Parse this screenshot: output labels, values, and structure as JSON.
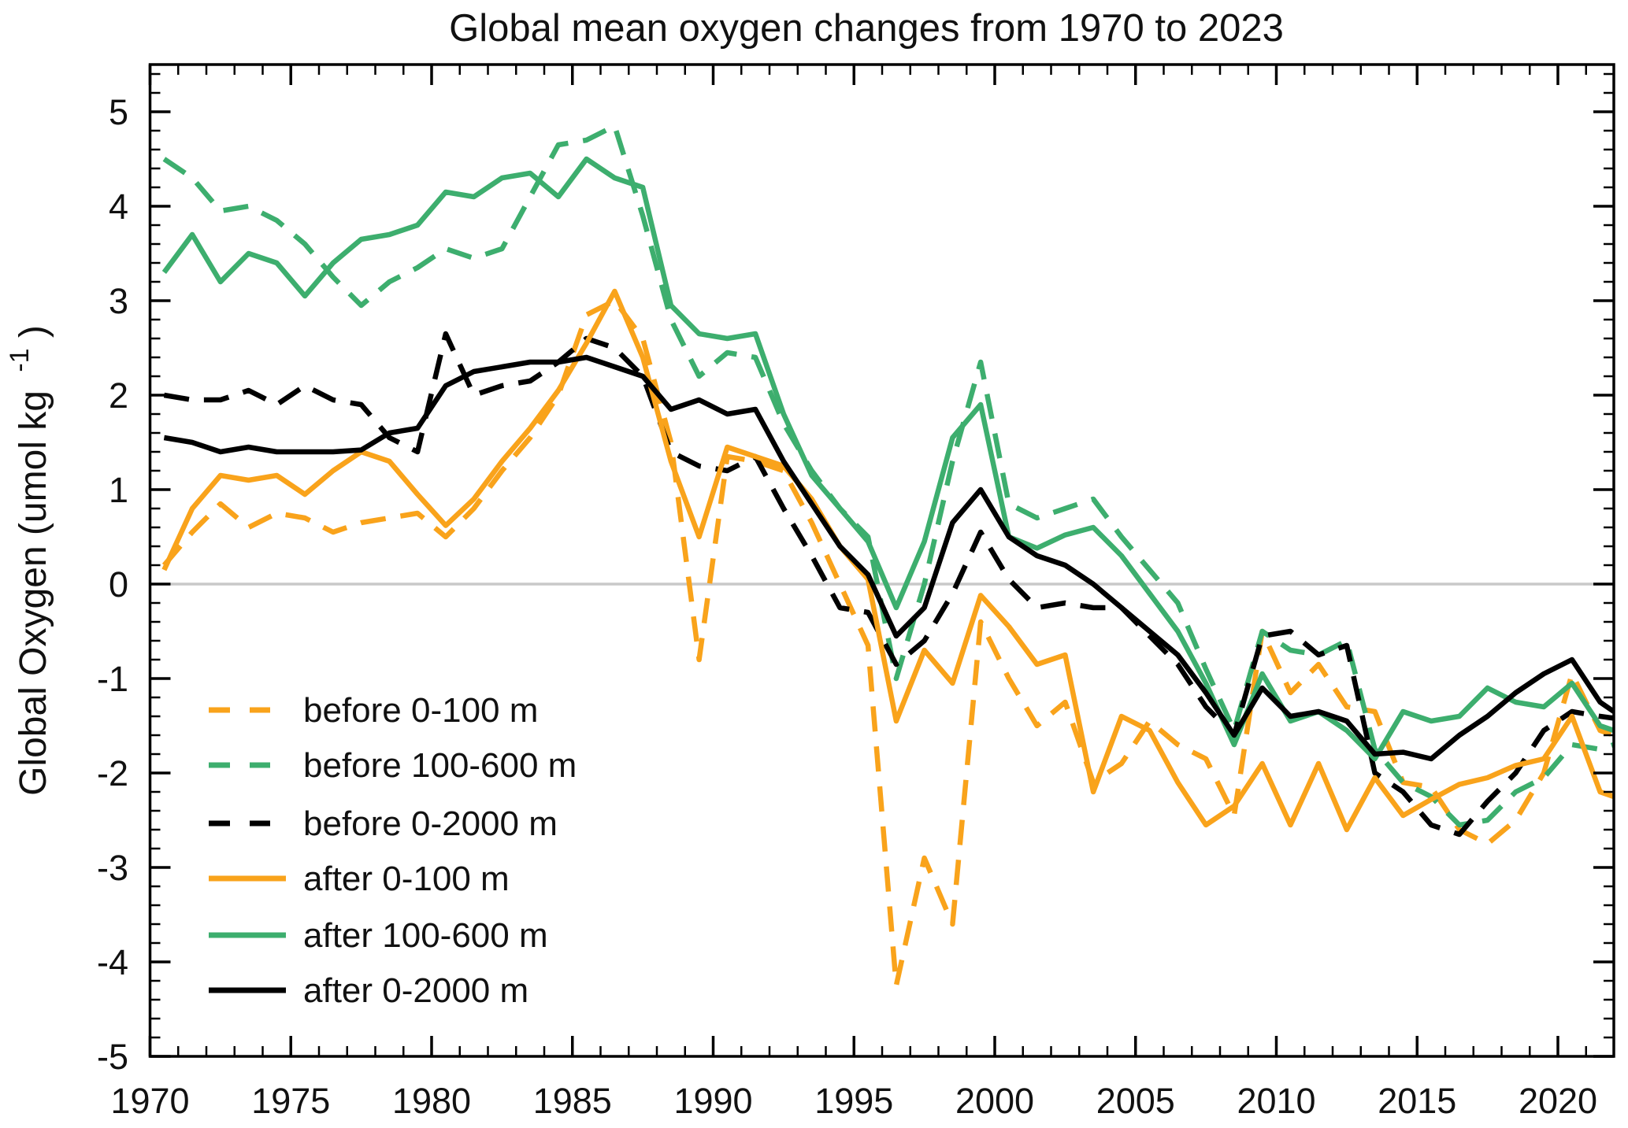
{
  "chart_data": {
    "type": "line",
    "title": "Global mean oxygen changes from 1970 to 2023",
    "xlabel": "",
    "ylabel": "Global Oxygen (umol kg⁻¹)",
    "ylabel_parts": {
      "main": "Global Oxygen (umol kg",
      "sup": "-1",
      "close": ")"
    },
    "xlim": [
      1970,
      2022
    ],
    "ylim": [
      -5,
      5.45
    ],
    "x_ticks": [
      1970,
      1975,
      1980,
      1985,
      1990,
      1995,
      2000,
      2005,
      2010,
      2015,
      2020
    ],
    "y_ticks": [
      5,
      4,
      3,
      2,
      1,
      0,
      -1,
      -2,
      -3,
      -4,
      -5
    ],
    "grid": "zero-line-only",
    "zero_line_color": "#c9c9c9",
    "legend_position": "lower-left",
    "colors": {
      "orange": "#F9A31B",
      "green": "#3DAE6E",
      "black": "#000000"
    },
    "years": [
      1970,
      1971,
      1972,
      1973,
      1974,
      1975,
      1976,
      1977,
      1978,
      1979,
      1980,
      1981,
      1982,
      1983,
      1984,
      1985,
      1986,
      1987,
      1988,
      1989,
      1990,
      1991,
      1992,
      1993,
      1994,
      1995,
      1996,
      1997,
      1998,
      1999,
      2000,
      2001,
      2002,
      2003,
      2004,
      2005,
      2006,
      2007,
      2008,
      2009,
      2010,
      2011,
      2012,
      2013,
      2014,
      2015,
      2016,
      2017,
      2018,
      2019,
      2020,
      2021,
      2022
    ],
    "series": [
      {
        "name": "before 0-100 m",
        "color": "#F9A31B",
        "dashed": true,
        "values": [
          0.2,
          0.55,
          0.85,
          0.6,
          0.75,
          0.7,
          0.55,
          0.65,
          0.7,
          0.75,
          0.5,
          0.8,
          1.2,
          1.55,
          2.0,
          2.85,
          3.0,
          2.6,
          1.5,
          -0.8,
          1.35,
          1.3,
          1.2,
          0.65,
          0.0,
          -0.65,
          -4.25,
          -2.9,
          -3.6,
          -0.4,
          -1.0,
          -1.5,
          -1.25,
          -2.1,
          -1.9,
          -1.45,
          -1.7,
          -1.85,
          -2.45,
          -0.5,
          -1.15,
          -0.85,
          -1.3,
          -1.35,
          -2.1,
          -2.15,
          -2.6,
          -2.75,
          -2.5,
          -2.0,
          -0.95,
          -1.55,
          -1.6
        ]
      },
      {
        "name": "before 100-600 m",
        "color": "#3DAE6E",
        "dashed": true,
        "values": [
          4.5,
          4.3,
          3.95,
          4.0,
          3.85,
          3.6,
          3.25,
          2.95,
          3.2,
          3.35,
          3.55,
          3.45,
          3.55,
          4.1,
          4.65,
          4.7,
          4.85,
          3.9,
          2.8,
          2.2,
          2.45,
          2.4,
          1.7,
          1.2,
          0.8,
          0.5,
          -1.0,
          0.0,
          1.3,
          2.35,
          0.85,
          0.7,
          0.8,
          0.9,
          0.5,
          0.15,
          -0.2,
          -0.9,
          -1.55,
          -0.5,
          -0.7,
          -0.75,
          -0.6,
          -1.75,
          -2.1,
          -2.25,
          -2.55,
          -2.5,
          -2.2,
          -2.05,
          -1.7,
          -1.75,
          -1.7
        ]
      },
      {
        "name": "before 0-2000 m",
        "color": "#000000",
        "dashed": true,
        "values": [
          2.0,
          1.95,
          1.95,
          2.05,
          1.9,
          2.1,
          1.95,
          1.9,
          1.55,
          1.4,
          2.65,
          2.0,
          2.1,
          2.15,
          2.35,
          2.6,
          2.5,
          2.2,
          1.4,
          1.25,
          1.2,
          1.35,
          0.8,
          0.3,
          -0.25,
          -0.3,
          -0.85,
          -0.6,
          -0.1,
          0.55,
          0.05,
          -0.25,
          -0.2,
          -0.25,
          -0.25,
          -0.55,
          -0.85,
          -1.3,
          -1.6,
          -0.55,
          -0.5,
          -0.75,
          -0.65,
          -2.0,
          -2.2,
          -2.55,
          -2.65,
          -2.3,
          -2.0,
          -1.55,
          -1.35,
          -1.4,
          -1.42
        ]
      },
      {
        "name": "after 0-100 m",
        "color": "#F9A31B",
        "dashed": false,
        "values": [
          0.15,
          0.8,
          1.15,
          1.1,
          1.15,
          0.95,
          1.2,
          1.4,
          1.3,
          0.95,
          0.62,
          0.9,
          1.3,
          1.65,
          2.05,
          2.55,
          3.1,
          2.4,
          1.3,
          0.5,
          1.45,
          1.35,
          1.25,
          0.9,
          0.4,
          0.05,
          -1.45,
          -0.7,
          -1.05,
          -0.12,
          -0.45,
          -0.85,
          -0.75,
          -2.2,
          -1.4,
          -1.55,
          -2.1,
          -2.55,
          -2.35,
          -1.9,
          -2.55,
          -1.9,
          -2.6,
          -2.05,
          -2.45,
          -2.28,
          -2.12,
          -2.05,
          -1.92,
          -1.85,
          -1.4,
          -2.2,
          -2.25
        ]
      },
      {
        "name": "after 100-600 m",
        "color": "#3DAE6E",
        "dashed": false,
        "values": [
          3.3,
          3.7,
          3.2,
          3.5,
          3.4,
          3.05,
          3.4,
          3.65,
          3.7,
          3.8,
          4.15,
          4.1,
          4.3,
          4.35,
          4.1,
          4.5,
          4.3,
          4.2,
          2.95,
          2.65,
          2.6,
          2.65,
          1.8,
          1.15,
          0.8,
          0.45,
          -0.25,
          0.45,
          1.55,
          1.9,
          0.5,
          0.38,
          0.52,
          0.6,
          0.3,
          -0.1,
          -0.5,
          -1.05,
          -1.7,
          -0.95,
          -1.45,
          -1.35,
          -1.55,
          -1.85,
          -1.35,
          -1.45,
          -1.4,
          -1.1,
          -1.25,
          -1.3,
          -1.05,
          -1.5,
          -1.55
        ]
      },
      {
        "name": "after 0-2000 m",
        "color": "#000000",
        "dashed": false,
        "values": [
          1.55,
          1.5,
          1.4,
          1.45,
          1.4,
          1.4,
          1.4,
          1.42,
          1.6,
          1.65,
          2.1,
          2.25,
          2.3,
          2.35,
          2.35,
          2.4,
          2.3,
          2.2,
          1.85,
          1.95,
          1.8,
          1.85,
          1.3,
          0.85,
          0.4,
          0.1,
          -0.55,
          -0.25,
          0.65,
          1.0,
          0.5,
          0.3,
          0.2,
          0.0,
          -0.25,
          -0.5,
          -0.75,
          -1.15,
          -1.6,
          -1.1,
          -1.4,
          -1.35,
          -1.45,
          -1.8,
          -1.78,
          -1.85,
          -1.6,
          -1.4,
          -1.15,
          -0.95,
          -0.8,
          -1.25,
          -1.35
        ]
      }
    ]
  }
}
